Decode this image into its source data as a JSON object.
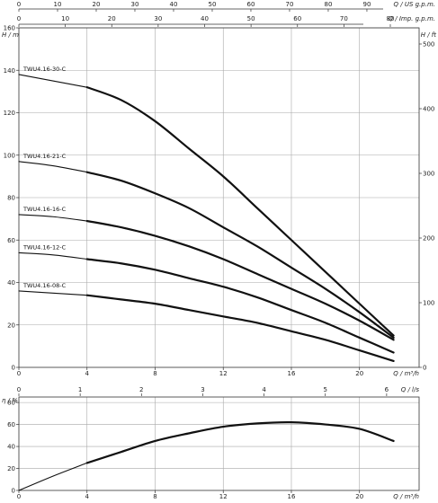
{
  "chart_data": [
    {
      "type": "line",
      "name": "head-curves",
      "x_axis": {
        "label": "Q / m³/h",
        "range": [
          0,
          23.5
        ],
        "ticks": [
          0,
          4,
          8,
          12,
          16,
          20
        ]
      },
      "y_axis_left": {
        "label": "H / m",
        "range": [
          0,
          160
        ],
        "ticks": [
          0,
          20,
          40,
          60,
          80,
          100,
          120,
          140,
          160
        ]
      },
      "y_axis_right": {
        "label": "H / ft",
        "range": [
          0,
          525
        ],
        "ticks": [
          0,
          100,
          200,
          300,
          400,
          500
        ]
      },
      "top_axis_1": {
        "label": "Q / US g.p.m.",
        "range": [
          0,
          103.5
        ],
        "ticks": [
          0,
          10,
          20,
          30,
          40,
          50,
          60,
          70,
          80,
          90
        ]
      },
      "top_axis_2": {
        "label": "Q / Imp. g.p.m.",
        "range": [
          0,
          86.2
        ],
        "ticks": [
          0,
          10,
          20,
          30,
          40,
          50,
          60,
          70,
          80
        ]
      },
      "grid": true,
      "series": [
        {
          "name": "TWU4.16-30-C",
          "x": [
            0,
            2,
            4,
            6,
            8,
            10,
            12,
            14,
            16,
            18,
            20,
            22
          ],
          "y": [
            138,
            135,
            132,
            126,
            116,
            103,
            90,
            75,
            60,
            45,
            30,
            15
          ]
        },
        {
          "name": "TWU4.16-21-C",
          "x": [
            0,
            2,
            4,
            6,
            8,
            10,
            12,
            14,
            16,
            18,
            20,
            22
          ],
          "y": [
            97,
            95,
            92,
            88,
            82,
            75,
            66,
            57,
            47,
            37,
            26,
            14
          ]
        },
        {
          "name": "TWU4.16-16-C",
          "x": [
            0,
            2,
            4,
            6,
            8,
            10,
            12,
            14,
            16,
            18,
            20,
            22
          ],
          "y": [
            72,
            71,
            69,
            66,
            62,
            57,
            51,
            44,
            37,
            30,
            22,
            13
          ]
        },
        {
          "name": "TWU4.16-12-C",
          "x": [
            0,
            2,
            4,
            6,
            8,
            10,
            12,
            14,
            16,
            18,
            20,
            22
          ],
          "y": [
            54,
            53,
            51,
            49,
            46,
            42,
            38,
            33,
            27,
            21,
            14,
            7
          ]
        },
        {
          "name": "TWU4.16-08-C",
          "x": [
            0,
            2,
            4,
            6,
            8,
            10,
            12,
            14,
            16,
            18,
            20,
            22
          ],
          "y": [
            36,
            35,
            34,
            32,
            30,
            27,
            24,
            21,
            17,
            13,
            8,
            3
          ]
        }
      ]
    },
    {
      "type": "line",
      "name": "efficiency-curve",
      "x_axis": {
        "label": "Q / m³/h",
        "range": [
          0,
          23.5
        ],
        "ticks": [
          0,
          4,
          8,
          12,
          16,
          20
        ]
      },
      "y_axis_left": {
        "label": "η / %",
        "range": [
          0,
          85
        ],
        "ticks": [
          0,
          20,
          40,
          60,
          80
        ]
      },
      "top_axis": {
        "label": "Q / l/s",
        "range": [
          0,
          6.53
        ],
        "ticks": [
          0,
          1,
          2,
          3,
          4,
          5,
          6
        ]
      },
      "grid": true,
      "series": [
        {
          "name": "efficiency",
          "x": [
            0,
            2,
            4,
            6,
            8,
            10,
            12,
            14,
            16,
            18,
            20,
            22
          ],
          "y": [
            0,
            13,
            25,
            35,
            45,
            52,
            58,
            61,
            62,
            60,
            56,
            45
          ]
        }
      ]
    }
  ]
}
